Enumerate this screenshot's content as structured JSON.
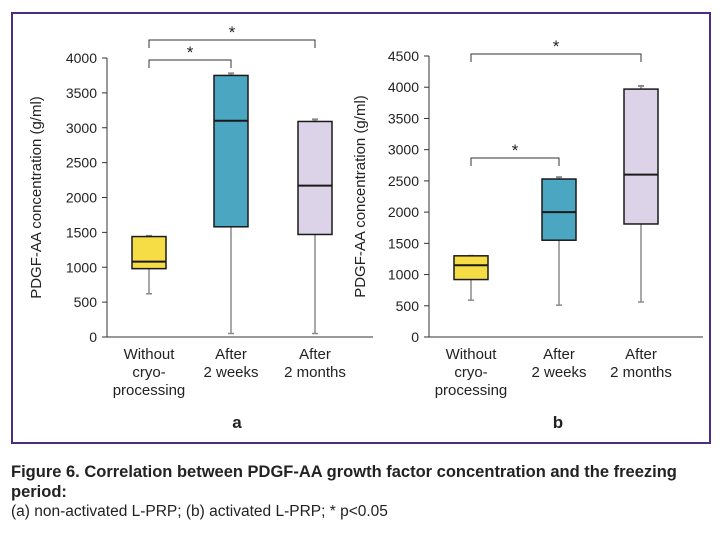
{
  "figure": {
    "caption_title": "Figure 6. Correlation between PDGF-AA growth factor concentration and the freezing period:",
    "caption_detail": "(a) non-activated L-PRP; (b) activated L-PRP; * p<0.05"
  },
  "colors": {
    "frame": "#4b2d83",
    "without": "#f6dc45",
    "two_weeks": "#4ba6c2",
    "two_months": "#dcd3e8"
  },
  "chart_data": [
    {
      "type": "box",
      "panel_label": "a",
      "ylabel": "PDGF-AA concentration (g/ml)",
      "ylim": [
        0,
        4000
      ],
      "yticks": [
        "0",
        "500",
        "1000",
        "1500",
        "2000",
        "2500",
        "3000",
        "3500",
        "4000"
      ],
      "categories": [
        {
          "lines": [
            "Without",
            "cryo-",
            "processing"
          ],
          "color": "#f6dc45",
          "min": 620,
          "q1": 980,
          "median": 1080,
          "q3": 1440,
          "max": 1450
        },
        {
          "lines": [
            "After",
            "2 weeks"
          ],
          "color": "#4ba6c2",
          "min": 50,
          "q1": 1580,
          "median": 3100,
          "q3": 3750,
          "max": 3780
        },
        {
          "lines": [
            "After",
            "2 months"
          ],
          "color": "#dcd3e8",
          "min": 50,
          "q1": 1470,
          "median": 2170,
          "q3": 3090,
          "max": 3120
        }
      ],
      "significance": [
        {
          "from": 0,
          "to": 1,
          "label": "*"
        },
        {
          "from": 0,
          "to": 2,
          "label": "*"
        }
      ]
    },
    {
      "type": "box",
      "panel_label": "b",
      "ylabel": "PDGF-AA concentration (g/ml)",
      "ylim": [
        0,
        4500
      ],
      "yticks": [
        "0",
        "500",
        "1000",
        "1500",
        "2000",
        "2500",
        "3000",
        "3500",
        "4000",
        "4500"
      ],
      "categories": [
        {
          "lines": [
            "Without",
            "cryo-",
            "processing"
          ],
          "color": "#f6dc45",
          "min": 590,
          "q1": 920,
          "median": 1150,
          "q3": 1300,
          "max": 1300
        },
        {
          "lines": [
            "After",
            "2 weeks"
          ],
          "color": "#4ba6c2",
          "min": 510,
          "q1": 1550,
          "median": 2000,
          "q3": 2530,
          "max": 2560
        },
        {
          "lines": [
            "After",
            "2 months"
          ],
          "color": "#dcd3e8",
          "min": 560,
          "q1": 1810,
          "median": 2600,
          "q3": 3970,
          "max": 4020
        }
      ],
      "significance": [
        {
          "from": 0,
          "to": 1,
          "label": "*"
        },
        {
          "from": 0,
          "to": 2,
          "label": "*"
        }
      ]
    }
  ]
}
